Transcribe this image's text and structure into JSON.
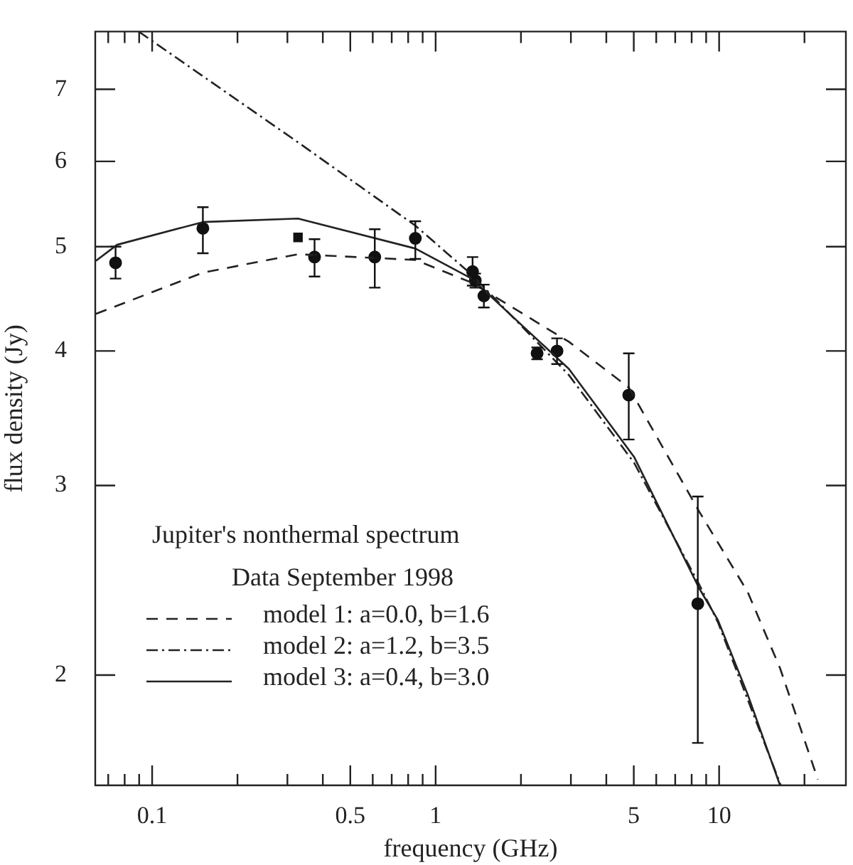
{
  "chart_data": {
    "type": "scatter",
    "title": "Jupiter's nonthermal spectrum",
    "legend_title": "Data September 1998",
    "xlabel": "frequency (GHz)",
    "ylabel": "flux density (Jy)",
    "log": "xy",
    "xlim": [
      0.063,
      28
    ],
    "ylim": [
      1.58,
      7.92
    ],
    "xticks": [
      {
        "value": 0.07,
        "label": null
      },
      {
        "value": 0.08,
        "label": null
      },
      {
        "value": 0.09,
        "label": null
      },
      0.1,
      {
        "value": 0.2,
        "label": null
      },
      {
        "value": 0.3,
        "label": null
      },
      {
        "value": 0.4,
        "label": null
      },
      0.5,
      {
        "value": 0.6,
        "label": null
      },
      {
        "value": 0.7,
        "label": null
      },
      {
        "value": 0.8,
        "label": null
      },
      {
        "value": 0.9,
        "label": null
      },
      1,
      {
        "value": 2,
        "label": null
      },
      {
        "value": 3,
        "label": null
      },
      {
        "value": 4,
        "label": null
      },
      5,
      {
        "value": 6,
        "label": null
      },
      {
        "value": 7,
        "label": null
      },
      {
        "value": 8,
        "label": null
      },
      {
        "value": 9,
        "label": null
      },
      10,
      {
        "value": 20,
        "label": null
      }
    ],
    "yticks": [
      2,
      3,
      4,
      5,
      6,
      7
    ],
    "legend": "bottom left",
    "series": [
      {
        "type": "line",
        "name": "model 1: a=0.0, b=1.6",
        "color": "#222222",
        "line_style": "dashed",
        "marker": "none",
        "x": [
          0.0633,
          0.151,
          0.327,
          0.848,
          1.34,
          2.95,
          4.8,
          8.49,
          12.6,
          16.4,
          22.3
        ],
        "values": [
          4.33,
          4.73,
          4.92,
          4.86,
          4.63,
          4.08,
          3.7,
          2.84,
          2.39,
          2.03,
          1.6
        ]
      },
      {
        "type": "line",
        "name": "model 2: a=1.2, b=3.5",
        "color": "#222222",
        "line_style": "dashdot",
        "marker": "none",
        "x": [
          0.0897,
          0.327,
          0.848,
          1.34,
          2.95,
          5.01,
          8.49,
          9.9,
          16.5
        ],
        "values": [
          7.92,
          6.25,
          5.23,
          4.71,
          3.8,
          3.15,
          2.43,
          2.24,
          1.58
        ]
      },
      {
        "type": "line",
        "name": "model 3: a=0.4, b=3.0",
        "color": "#222222",
        "line_style": "solid",
        "marker": "none",
        "x": [
          0.0633,
          0.0752,
          0.151,
          0.327,
          0.848,
          1.34,
          2.95,
          5.01,
          8.49,
          9.9,
          12.6,
          16.4
        ],
        "values": [
          4.85,
          5.02,
          5.27,
          5.31,
          4.98,
          4.67,
          3.85,
          3.19,
          2.41,
          2.25,
          1.92,
          1.58
        ]
      },
      {
        "type": "scatter",
        "color": "#111111",
        "marker": "circle",
        "x": [
          0.0743,
          0.151,
          0.374,
          0.61,
          0.848,
          1.35,
          1.38,
          1.48,
          2.28,
          2.68,
          4.8,
          8.41
        ],
        "values": [
          4.83,
          5.2,
          4.89,
          4.89,
          5.09,
          4.74,
          4.65,
          4.5,
          3.98,
          4.0,
          3.64,
          2.33
        ],
        "errors": [
          [
            4.67,
            5.0
          ],
          [
            4.93,
            5.44
          ],
          [
            4.69,
            5.08
          ],
          [
            4.58,
            5.19
          ],
          [
            4.87,
            5.28
          ],
          [
            4.6,
            4.89
          ],
          [
            4.58,
            4.72
          ],
          [
            4.39,
            4.61
          ],
          [
            3.93,
            4.03
          ],
          [
            3.89,
            4.11
          ],
          [
            3.31,
            3.98
          ],
          [
            1.73,
            2.93
          ]
        ]
      },
      {
        "type": "scatter",
        "color": "#111111",
        "marker": "square",
        "x": [
          0.327
        ],
        "values": [
          5.1
        ]
      }
    ]
  }
}
